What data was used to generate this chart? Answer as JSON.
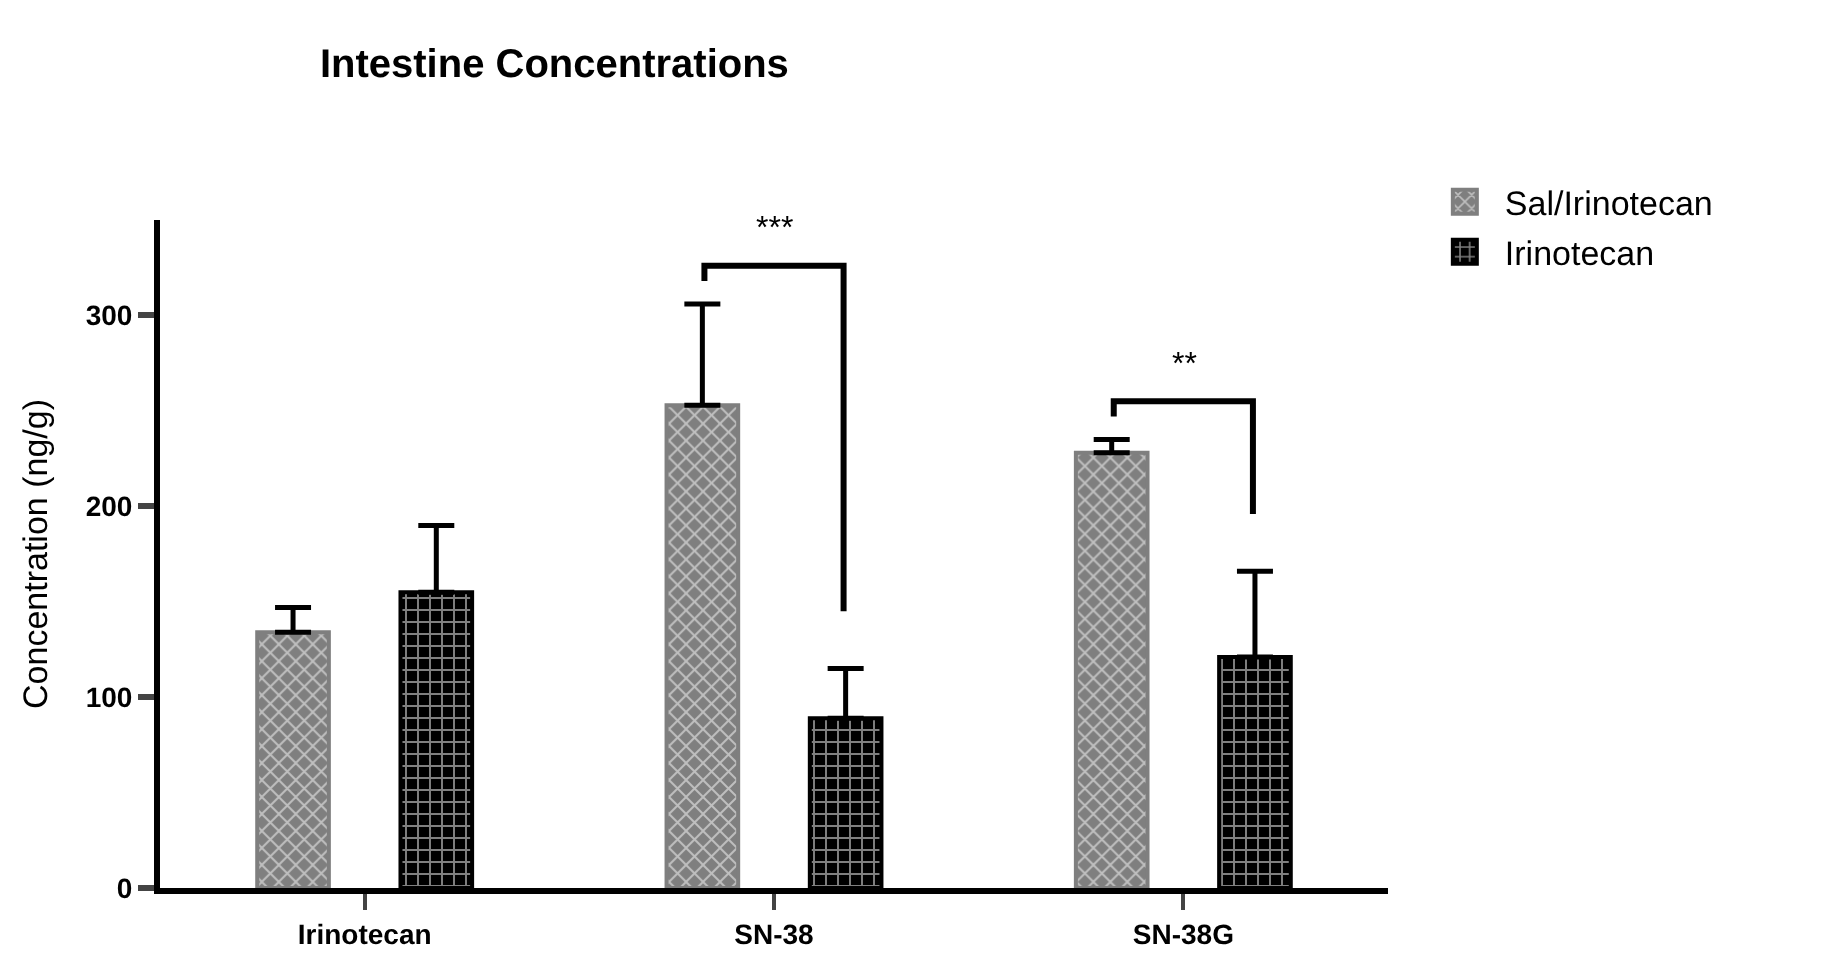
{
  "chart_data": {
    "type": "bar",
    "title": "Intestine Concentrations",
    "ylabel": "Concentration (ng/g)",
    "categories": [
      "Irinotecan",
      "SN-38",
      "SN-38G"
    ],
    "series": [
      {
        "name": "Sal/Irinotecan",
        "color": "#7f7f7f",
        "values": [
          134,
          253,
          228
        ],
        "errors": [
          [
            134,
            147
          ],
          [
            253,
            306
          ],
          [
            228,
            235
          ]
        ]
      },
      {
        "name": "Irinotecan",
        "color": "#000000",
        "values": [
          155,
          89,
          121
        ],
        "errors": [
          [
            155,
            190
          ],
          [
            89,
            115
          ],
          [
            121,
            166
          ]
        ]
      }
    ],
    "ylim": [
      0,
      350
    ],
    "yticks": [
      0,
      100,
      200,
      300
    ],
    "legend": "top right",
    "annotations": [
      "***",
      "**"
    ]
  }
}
